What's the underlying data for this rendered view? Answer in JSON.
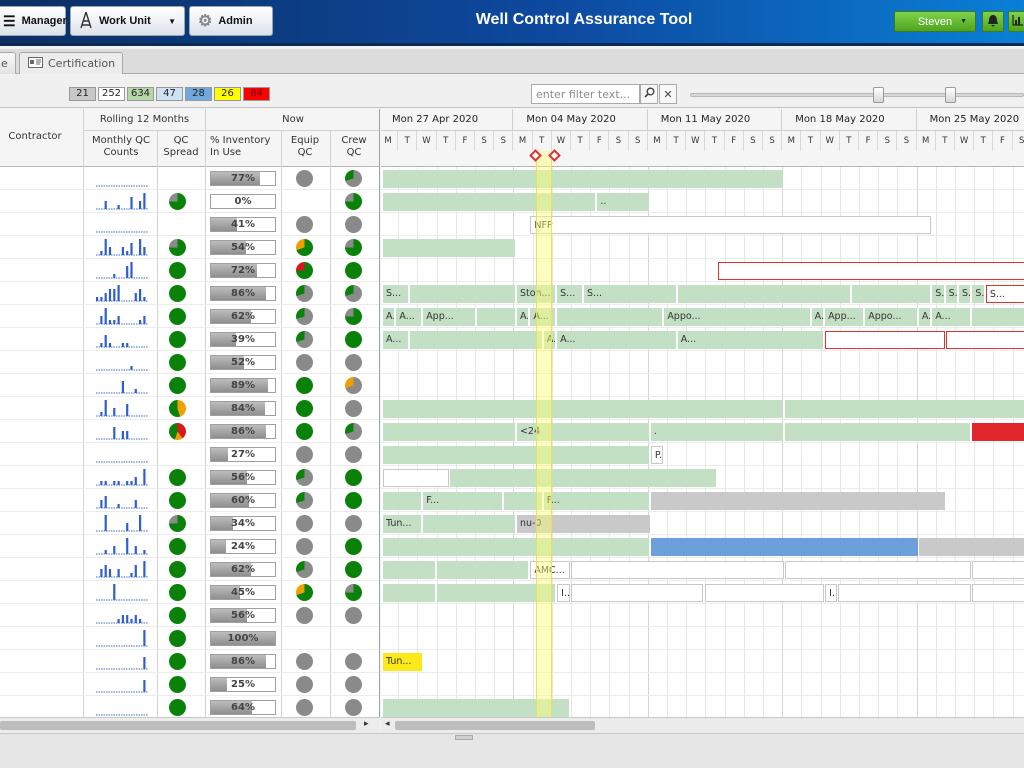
{
  "header": {
    "title": "Well Control Assurance Tool",
    "buttons": {
      "manager": "Manager",
      "work_unit": "Work Unit",
      "admin": "Admin"
    },
    "user": "Steven"
  },
  "tabs": [
    {
      "label": "e"
    },
    {
      "label": "Certification"
    }
  ],
  "counts": [
    {
      "value": "21",
      "color": "#c8c8c8"
    },
    {
      "value": "252",
      "color": "#ffffff"
    },
    {
      "value": "634",
      "color": "#b5d7a8"
    },
    {
      "value": "47",
      "color": "#cfe2f3"
    },
    {
      "value": "28",
      "color": "#6fa8dc"
    },
    {
      "value": "26",
      "color": "#ffff00"
    },
    {
      "value": "84",
      "color": "#ff0000"
    }
  ],
  "filter": {
    "placeholder": "enter filter text..."
  },
  "left_header": {
    "contractor": "Contractor",
    "rolling": "Rolling 12 Months",
    "now": "Now",
    "monthly_qc": "Monthly QC Counts",
    "qc_spread": "QC Spread",
    "inventory": "% Inventory In Use",
    "equip_qc": "Equip QC",
    "crew_qc": "Crew QC"
  },
  "timeline": {
    "weeks": [
      "Mon 27 Apr 2020",
      "Mon 04 May 2020",
      "Mon 11 May 2020",
      "Mon 18 May 2020",
      "Mon 25 May 2020"
    ],
    "days": [
      "M",
      "T",
      "W",
      "T",
      "F",
      "S",
      "S"
    ]
  },
  "rows": [
    {
      "spark": [
        0,
        0,
        0,
        0,
        0,
        0,
        0,
        0,
        0,
        0,
        0,
        0
      ],
      "spread": "none",
      "inv": "77%",
      "inv_pct": 0.77,
      "equip": "gray",
      "crew": "gray-green"
    },
    {
      "spark": [
        0,
        0,
        2,
        0,
        0,
        1,
        0,
        0,
        3,
        0,
        2,
        4
      ],
      "spread": "green-gray",
      "inv": "0%",
      "inv_pct": 0,
      "equip": "none",
      "crew": "green-gray"
    },
    {
      "spark": [
        0,
        0,
        0,
        0,
        0,
        0,
        0,
        0,
        0,
        0,
        0,
        0
      ],
      "spread": "none",
      "inv": "41%",
      "inv_pct": 0.41,
      "equip": "gray",
      "crew": "gray"
    },
    {
      "spark": [
        0,
        1,
        4,
        2,
        0,
        0,
        2,
        1,
        3,
        0,
        4,
        2
      ],
      "spread": "green-gray",
      "inv": "54%",
      "inv_pct": 0.54,
      "equip": "green-orange",
      "crew": "green-gray"
    },
    {
      "spark": [
        0,
        0,
        0,
        0,
        1,
        0,
        0,
        3,
        4,
        0,
        0,
        0
      ],
      "spread": "green",
      "inv": "72%",
      "inv_pct": 0.72,
      "equip": "green-red",
      "crew": "green"
    },
    {
      "spark": [
        1,
        1,
        2,
        3,
        3,
        4,
        0,
        0,
        0,
        2,
        3,
        1
      ],
      "spread": "green",
      "inv": "86%",
      "inv_pct": 0.86,
      "equip": "gray-green",
      "crew": "gray-green"
    },
    {
      "spark": [
        0,
        2,
        4,
        1,
        1,
        2,
        0,
        0,
        0,
        0,
        1,
        2
      ],
      "spread": "green",
      "inv": "62%",
      "inv_pct": 0.62,
      "equip": "gray-green",
      "crew": "green-gray"
    },
    {
      "spark": [
        0,
        1,
        3,
        1,
        0,
        0,
        1,
        1,
        0,
        0,
        0,
        0
      ],
      "spread": "green",
      "inv": "39%",
      "inv_pct": 0.39,
      "equip": "gray-green",
      "crew": "green"
    },
    {
      "spark": [
        0,
        0,
        0,
        0,
        0,
        0,
        0,
        0,
        1,
        0,
        0,
        0
      ],
      "spread": "green",
      "inv": "52%",
      "inv_pct": 0.52,
      "equip": "gray",
      "crew": "gray"
    },
    {
      "spark": [
        0,
        0,
        0,
        0,
        0,
        0,
        3,
        0,
        0,
        1,
        0,
        0
      ],
      "spread": "green",
      "inv": "89%",
      "inv_pct": 0.89,
      "equip": "green",
      "crew": "gray-orange"
    },
    {
      "spark": [
        0,
        1,
        4,
        0,
        2,
        0,
        0,
        3,
        0,
        0,
        0,
        0
      ],
      "spread": "orange-green",
      "inv": "84%",
      "inv_pct": 0.84,
      "equip": "green",
      "crew": "gray"
    },
    {
      "spark": [
        0,
        0,
        0,
        0,
        3,
        0,
        2,
        2,
        0,
        0,
        0,
        0
      ],
      "spread": "red-green",
      "inv": "86%",
      "inv_pct": 0.86,
      "equip": "green",
      "crew": "gray-green"
    },
    {
      "spark": [
        0,
        0,
        0,
        0,
        0,
        0,
        0,
        0,
        0,
        0,
        0,
        0
      ],
      "spread": "none",
      "inv": "27%",
      "inv_pct": 0.27,
      "equip": "gray",
      "crew": "gray"
    },
    {
      "spark": [
        0,
        1,
        1,
        0,
        1,
        1,
        0,
        1,
        1,
        2,
        0,
        4
      ],
      "spread": "green",
      "inv": "56%",
      "inv_pct": 0.56,
      "equip": "gray-green",
      "crew": "green"
    },
    {
      "spark": [
        0,
        2,
        3,
        0,
        0,
        1,
        0,
        0,
        0,
        2,
        0,
        0
      ],
      "spread": "green",
      "inv": "60%",
      "inv_pct": 0.6,
      "equip": "gray-green",
      "crew": "green"
    },
    {
      "spark": [
        0,
        0,
        4,
        0,
        0,
        0,
        0,
        2,
        0,
        0,
        4,
        0
      ],
      "spread": "green-gray",
      "inv": "34%",
      "inv_pct": 0.34,
      "equip": "gray",
      "crew": "gray"
    },
    {
      "spark": [
        0,
        0,
        1,
        0,
        2,
        0,
        0,
        4,
        0,
        2,
        0,
        1
      ],
      "spread": "green",
      "inv": "24%",
      "inv_pct": 0.24,
      "equip": "gray",
      "crew": "green"
    },
    {
      "spark": [
        0,
        2,
        3,
        2,
        0,
        2,
        0,
        0,
        1,
        3,
        0,
        4
      ],
      "spread": "green",
      "inv": "62%",
      "inv_pct": 0.62,
      "equip": "gray-green",
      "crew": "green"
    },
    {
      "spark": [
        0,
        0,
        0,
        0,
        4,
        0,
        0,
        0,
        0,
        0,
        0,
        0
      ],
      "spread": "green",
      "inv": "45%",
      "inv_pct": 0.45,
      "equip": "green-orange",
      "crew": "green-gray"
    },
    {
      "spark": [
        0,
        0,
        0,
        0,
        0,
        1,
        2,
        2,
        1,
        2,
        1,
        0
      ],
      "spread": "green",
      "inv": "56%",
      "inv_pct": 0.56,
      "equip": "gray",
      "crew": "gray"
    },
    {
      "spark": [
        0,
        0,
        0,
        0,
        0,
        0,
        0,
        0,
        0,
        0,
        0,
        4
      ],
      "spread": "green",
      "inv": "100%",
      "inv_pct": 1.0,
      "equip": "none",
      "crew": "none"
    },
    {
      "spark": [
        0,
        0,
        0,
        0,
        0,
        0,
        0,
        0,
        0,
        0,
        0,
        3
      ],
      "spread": "green",
      "inv": "86%",
      "inv_pct": 0.86,
      "equip": "gray",
      "crew": "gray"
    },
    {
      "spark": [
        0,
        0,
        0,
        0,
        0,
        0,
        0,
        0,
        0,
        0,
        0,
        3
      ],
      "spread": "green",
      "inv": "25%",
      "inv_pct": 0.25,
      "equip": "gray",
      "crew": "gray"
    },
    {
      "spark": [
        0,
        0,
        0,
        0,
        0,
        0,
        0,
        0,
        0,
        0,
        0,
        0
      ],
      "spread": "green",
      "inv": "64%",
      "inv_pct": 0.64,
      "equip": "gray",
      "crew": "gray"
    }
  ],
  "gantt": [
    [
      {
        "d0": 0,
        "d1": 30,
        "c": "g",
        "t": ""
      }
    ],
    [
      {
        "d0": 0,
        "d1": 16,
        "c": "g",
        "t": ""
      },
      {
        "d0": 16,
        "d1": 20,
        "c": "g",
        "t": ".."
      }
    ],
    [
      {
        "d0": 11,
        "d1": 41,
        "c": "w",
        "t": "NFP"
      }
    ],
    [
      {
        "d0": 0,
        "d1": 10,
        "c": "g",
        "t": ""
      }
    ],
    [
      {
        "d0": 25,
        "d1": 48,
        "c": "r",
        "t": ""
      }
    ],
    [
      {
        "d0": 0,
        "d1": 2,
        "c": "g",
        "t": "S..."
      },
      {
        "d0": 2,
        "d1": 10,
        "c": "g",
        "t": ""
      },
      {
        "d0": 10,
        "d1": 13,
        "c": "g",
        "t": "Ston..."
      },
      {
        "d0": 13,
        "d1": 15,
        "c": "g",
        "t": "S..."
      },
      {
        "d0": 15,
        "d1": 22,
        "c": "g",
        "t": "S..."
      },
      {
        "d0": 22,
        "d1": 35,
        "c": "g",
        "t": ""
      },
      {
        "d0": 35,
        "d1": 41,
        "c": "g",
        "t": ""
      },
      {
        "d0": 41,
        "d1": 42,
        "c": "g",
        "t": "S..."
      },
      {
        "d0": 42,
        "d1": 43,
        "c": "g",
        "t": "S..."
      },
      {
        "d0": 43,
        "d1": 44,
        "c": "g",
        "t": "S..."
      },
      {
        "d0": 44,
        "d1": 45,
        "c": "g",
        "t": "S..."
      },
      {
        "d0": 45,
        "d1": 48,
        "c": "r",
        "t": "S..."
      }
    ],
    [
      {
        "d0": 0,
        "d1": 1,
        "c": "g",
        "t": "A..."
      },
      {
        "d0": 1,
        "d1": 3,
        "c": "g",
        "t": "A..."
      },
      {
        "d0": 3,
        "d1": 7,
        "c": "g",
        "t": "App..."
      },
      {
        "d0": 7,
        "d1": 10,
        "c": "g",
        "t": ""
      },
      {
        "d0": 10,
        "d1": 11,
        "c": "g",
        "t": "A..."
      },
      {
        "d0": 11,
        "d1": 13,
        "c": "g",
        "t": "A..."
      },
      {
        "d0": 13,
        "d1": 21,
        "c": "g",
        "t": ""
      },
      {
        "d0": 21,
        "d1": 32,
        "c": "g",
        "t": "Appo..."
      },
      {
        "d0": 32,
        "d1": 33,
        "c": "g",
        "t": "A..."
      },
      {
        "d0": 33,
        "d1": 36,
        "c": "g",
        "t": "App..."
      },
      {
        "d0": 36,
        "d1": 40,
        "c": "g",
        "t": "Appo..."
      },
      {
        "d0": 40,
        "d1": 41,
        "c": "g",
        "t": "A..."
      },
      {
        "d0": 41,
        "d1": 44,
        "c": "g",
        "t": "A..."
      },
      {
        "d0": 44,
        "d1": 48,
        "c": "g",
        "t": ""
      }
    ],
    [
      {
        "d0": 0,
        "d1": 2,
        "c": "g",
        "t": "A..."
      },
      {
        "d0": 2,
        "d1": 12,
        "c": "g",
        "t": ""
      },
      {
        "d0": 12,
        "d1": 13,
        "c": "g",
        "t": "A..."
      },
      {
        "d0": 13,
        "d1": 22,
        "c": "g",
        "t": "A..."
      },
      {
        "d0": 22,
        "d1": 33,
        "c": "g",
        "t": "A..."
      },
      {
        "d0": 33,
        "d1": 42,
        "c": "r",
        "t": ""
      },
      {
        "d0": 42,
        "d1": 48,
        "c": "r",
        "t": ""
      }
    ],
    [],
    [],
    [
      {
        "d0": 0,
        "d1": 30,
        "c": "g",
        "t": ""
      },
      {
        "d0": 30,
        "d1": 48,
        "c": "g",
        "t": ""
      }
    ],
    [
      {
        "d0": 0,
        "d1": 10,
        "c": "g",
        "t": ""
      },
      {
        "d0": 10,
        "d1": 20,
        "c": "g",
        "t": "<24"
      },
      {
        "d0": 20,
        "d1": 30,
        "c": "g",
        "t": "."
      },
      {
        "d0": 30,
        "d1": 44,
        "c": "g",
        "t": ""
      },
      {
        "d0": 44,
        "d1": 48,
        "c": "rd",
        "t": ""
      }
    ],
    [
      {
        "d0": 0,
        "d1": 20,
        "c": "g",
        "t": ""
      },
      {
        "d0": 20,
        "d1": 21,
        "c": "w",
        "t": "P..."
      }
    ],
    [
      {
        "d0": 0,
        "d1": 5,
        "c": "w",
        "t": ""
      },
      {
        "d0": 5,
        "d1": 25,
        "c": "g",
        "t": ""
      }
    ],
    [
      {
        "d0": 0,
        "d1": 3,
        "c": "g",
        "t": ""
      },
      {
        "d0": 3,
        "d1": 9,
        "c": "g",
        "t": "F..."
      },
      {
        "d0": 9,
        "d1": 12,
        "c": "g",
        "t": ""
      },
      {
        "d0": 12,
        "d1": 20,
        "c": "g",
        "t": "F..."
      },
      {
        "d0": 20,
        "d1": 42,
        "c": "gy",
        "t": ""
      }
    ],
    [
      {
        "d0": 0,
        "d1": 3,
        "c": "g",
        "t": "Tun..."
      },
      {
        "d0": 3,
        "d1": 10,
        "c": "g",
        "t": ""
      },
      {
        "d0": 10,
        "d1": 20,
        "c": "gy",
        "t": "nu-0"
      }
    ],
    [
      {
        "d0": 0,
        "d1": 20,
        "c": "g",
        "t": ""
      },
      {
        "d0": 20,
        "d1": 40,
        "c": "bl",
        "t": ""
      },
      {
        "d0": 40,
        "d1": 48,
        "c": "gy",
        "t": ""
      }
    ],
    [
      {
        "d0": 0,
        "d1": 4,
        "c": "g",
        "t": ""
      },
      {
        "d0": 4,
        "d1": 11,
        "c": "g",
        "t": ""
      },
      {
        "d0": 11,
        "d1": 14,
        "c": "w",
        "t": "AMC..."
      },
      {
        "d0": 14,
        "d1": 30,
        "c": "w",
        "t": ""
      },
      {
        "d0": 30,
        "d1": 44,
        "c": "w",
        "t": ""
      },
      {
        "d0": 44,
        "d1": 48,
        "c": "w",
        "t": ""
      }
    ],
    [
      {
        "d0": 0,
        "d1": 4,
        "c": "g",
        "t": ""
      },
      {
        "d0": 4,
        "d1": 13,
        "c": "g",
        "t": ""
      },
      {
        "d0": 13,
        "d1": 14,
        "c": "w",
        "t": "I..."
      },
      {
        "d0": 14,
        "d1": 24,
        "c": "w",
        "t": ""
      },
      {
        "d0": 24,
        "d1": 33,
        "c": "w",
        "t": ""
      },
      {
        "d0": 33,
        "d1": 34,
        "c": "w",
        "t": "I..."
      },
      {
        "d0": 34,
        "d1": 44,
        "c": "w",
        "t": ""
      },
      {
        "d0": 44,
        "d1": 48,
        "c": "w",
        "t": ""
      }
    ],
    [],
    [],
    [
      {
        "d0": 0,
        "d1": 3,
        "c": "y",
        "t": "Tun..."
      }
    ],
    [],
    [
      {
        "d0": 0,
        "d1": 14,
        "c": "g",
        "t": ""
      }
    ]
  ],
  "colors": {
    "green": "#0a820a",
    "gray": "#8a8a8a",
    "orange": "#f0a000",
    "red": "#d7191c"
  }
}
